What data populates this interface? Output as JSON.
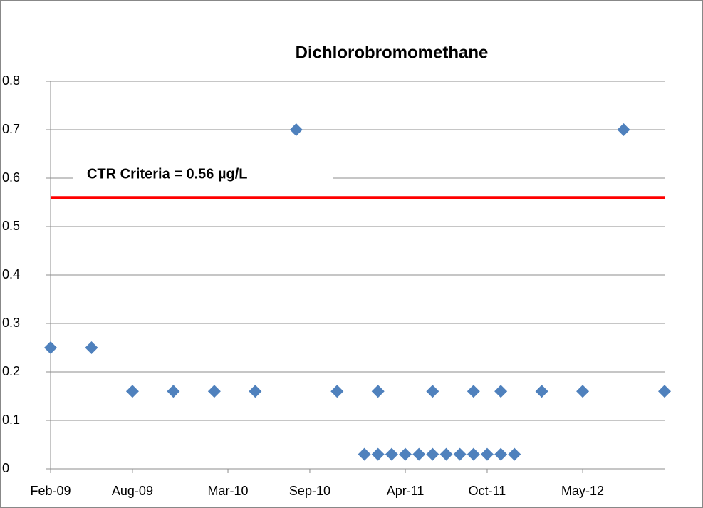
{
  "chart_data": {
    "type": "scatter",
    "title": "Dichlorobromomethane",
    "x": [
      "2009-02",
      "2009-05",
      "2009-08",
      "2009-11",
      "2010-02",
      "2010-05",
      "2010-08",
      "2010-11",
      "2011-01",
      "2011-02",
      "2011-02",
      "2011-03",
      "2011-04",
      "2011-05",
      "2011-06",
      "2011-06",
      "2011-07",
      "2011-08",
      "2011-09",
      "2011-09",
      "2011-10",
      "2011-11",
      "2011-11",
      "2011-12",
      "2012-02",
      "2012-05",
      "2012-08",
      "2012-11"
    ],
    "values": [
      0.25,
      0.25,
      0.16,
      0.16,
      0.16,
      0.16,
      0.7,
      0.16,
      0.03,
      0.03,
      0.16,
      0.03,
      0.03,
      0.03,
      0.16,
      0.03,
      0.03,
      0.03,
      0.16,
      0.03,
      0.03,
      0.16,
      0.03,
      0.03,
      0.16,
      0.16,
      0.7,
      0.16
    ],
    "color": "#4f81bd",
    "xlim": [
      "2009-02",
      "2012-11"
    ],
    "xticks": [
      {
        "value": "2009-02",
        "label": "Feb-09"
      },
      {
        "value": "2009-08",
        "label": "Aug-09"
      },
      {
        "value": "2010-03",
        "label": "Mar-10"
      },
      {
        "value": "2010-09",
        "label": "Sep-10"
      },
      {
        "value": "2011-04",
        "label": "Apr-11"
      },
      {
        "value": "2011-10",
        "label": "Oct-11"
      },
      {
        "value": "2012-05",
        "label": "May-12"
      }
    ],
    "ylim": [
      0,
      0.8
    ],
    "yticks": [
      0,
      0.1,
      0.2,
      0.3,
      0.4,
      0.5,
      0.6,
      0.7,
      0.8
    ],
    "grid": true,
    "reference_line": {
      "value": 0.56,
      "label": "CTR Criteria = 0.56 µg/L",
      "color": "#ff0000"
    }
  }
}
